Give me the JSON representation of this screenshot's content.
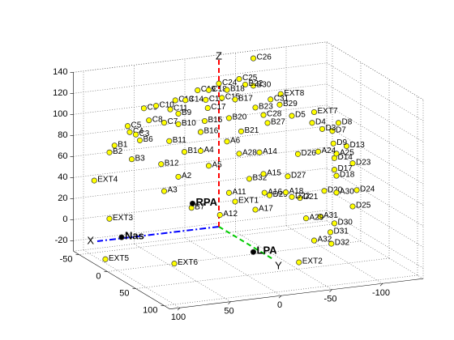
{
  "chart_data": {
    "type": "scatter3d",
    "axis_labels": {
      "x": "X",
      "y": "Y",
      "z": "Z"
    },
    "xlim": [
      -140,
      110
    ],
    "ylim": [
      -60,
      110
    ],
    "zlim": [
      -30,
      140
    ],
    "xticks": [
      -100,
      -50,
      0,
      50,
      100
    ],
    "yticks": [
      -50,
      0,
      50,
      100
    ],
    "zticks": [
      -20,
      0,
      20,
      40,
      60,
      80,
      100,
      120,
      140
    ],
    "grid": true,
    "electrodes": {
      "color": "#ffff00",
      "names": [
        "C26",
        "C24",
        "C25",
        "B30",
        "B22",
        "EXT8",
        "C31",
        "C19",
        "C18",
        "B18",
        "C13",
        "C14",
        "C16",
        "C15",
        "B17",
        "C9",
        "C10",
        "C11",
        "C17",
        "B23",
        "C28",
        "B29",
        "D8",
        "EXT7",
        "D4",
        "D5",
        "D7",
        "D3",
        "C8",
        "C7",
        "C5",
        "C4",
        "C3",
        "B9",
        "B10",
        "B6",
        "B11",
        "B16",
        "B15",
        "B14",
        "A4",
        "A6",
        "B20",
        "B27",
        "B21",
        "B1",
        "B2",
        "B3",
        "B12",
        "A3",
        "A2",
        "A5",
        "A28",
        "A14",
        "B32",
        "A12",
        "A11",
        "EXT1",
        "A15",
        "A16",
        "A17",
        "D29",
        "D26",
        "D23",
        "D13",
        "D14",
        "D17",
        "D18",
        "D24",
        "D25",
        "D20",
        "A30",
        "D21",
        "A31",
        "A29",
        "D30",
        "D31",
        "D32",
        "A32",
        "EXT2",
        "EXT3",
        "EXT4",
        "EXT5",
        "EXT6",
        "D9",
        "A25",
        "A24",
        "D27",
        "D22",
        "A18",
        "B7"
      ],
      "x": [
        -34,
        0,
        -20,
        -34,
        -26,
        -61,
        -51,
        21,
        10,
        -8,
        43,
        33,
        13,
        -3,
        -16,
        74,
        62,
        48,
        11,
        -36,
        -44,
        -60,
        -118,
        -94,
        -92,
        -72,
        -112,
        -102,
        69,
        54,
        90,
        88,
        82,
        40,
        40,
        78,
        49,
        18,
        14,
        34,
        18,
        -8,
        -10,
        -48,
        -22,
        103,
        108,
        86,
        57,
        54,
        40,
        10,
        -20,
        -40,
        -30,
        -1,
        -10,
        -16,
        -44,
        -45,
        -36,
        -50,
        -78,
        -132,
        -126,
        -114,
        -114,
        -116,
        -136,
        -132,
        -104,
        -116,
        -80,
        -100,
        -86,
        -114,
        -110,
        -111,
        -94,
        -79,
        108,
        123,
        112,
        44,
        -113,
        -116,
        -98,
        -68,
        -72,
        -66,
        27
      ],
      "z": [
        156,
        136,
        138,
        130,
        132,
        119,
        115,
        132,
        131,
        129,
        125,
        124,
        122,
        122,
        119,
        121,
        122,
        117,
        114,
        109,
        101,
        109,
        85,
        98,
        88,
        97,
        78,
        81,
        109,
        105,
        106,
        100,
        97,
        112,
        102,
        91,
        87,
        92,
        102,
        75,
        74,
        80,
        102,
        93,
        88,
        89,
        83,
        74,
        66,
        40,
        52,
        59,
        67,
        66,
        42,
        11,
        31,
        22,
        45,
        27,
        12,
        24,
        60,
        45,
        62,
        52,
        41,
        35,
        19,
        4,
        22,
        19,
        18,
        -2,
        -2,
        -10,
        -18,
        -29,
        -24,
        -43,
        20,
        58,
        -18,
        -30,
        66,
        56,
        60,
        40,
        20,
        25,
        21
      ]
    },
    "fiducials": {
      "color": "#000000",
      "names": [
        "Nas",
        "LPA",
        "RPA"
      ],
      "x": [
        96,
        -34,
        26
      ],
      "z": [
        1,
        -28,
        25
      ]
    }
  }
}
